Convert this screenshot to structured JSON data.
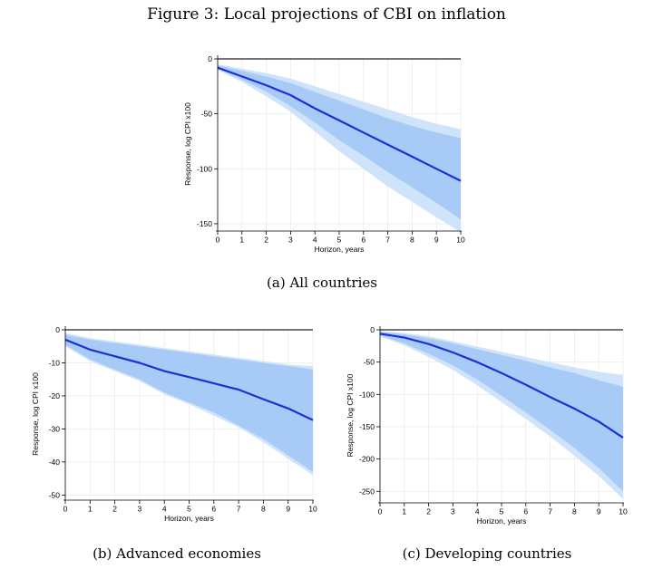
{
  "figure_title": "Figure 3: Local projections of CBI on inflation",
  "colors": {
    "line": "#1f2ed6",
    "band_outer": "#cfe3fb",
    "band_inner": "#a7cbf6",
    "zero_line": "#222222",
    "grid": "#e6e6e6"
  },
  "chart_data": [
    {
      "type": "line",
      "caption": "(a) All countries",
      "xlabel": "Horizon, years",
      "ylabel": "Response, log CPI x100",
      "xlim": [
        0,
        10
      ],
      "ylim": [
        -155,
        0
      ],
      "x_ticks": [
        0,
        1,
        2,
        3,
        4,
        5,
        6,
        7,
        8,
        9,
        10
      ],
      "y_ticks": [
        0,
        -50,
        -100,
        -150
      ],
      "grid": true,
      "x": [
        0,
        1,
        2,
        3,
        4,
        5,
        6,
        7,
        8,
        9,
        10
      ],
      "series": [
        {
          "values": [
            -8,
            -16,
            -24,
            -33,
            -45,
            -56,
            -67,
            -78,
            -89,
            -100,
            -111
          ]
        }
      ],
      "band_outer": {
        "upper": [
          -5,
          -9,
          -13,
          -18,
          -25,
          -32,
          -39,
          -46,
          -53,
          -59,
          -64
        ],
        "lower": [
          -10,
          -21,
          -34,
          -48,
          -66,
          -84,
          -100,
          -116,
          -130,
          -144,
          -158
        ]
      },
      "band_inner": {
        "upper": [
          -6,
          -11,
          -16,
          -22,
          -30,
          -38,
          -46,
          -54,
          -61,
          -67,
          -72
        ],
        "lower": [
          -9,
          -19,
          -30,
          -43,
          -58,
          -74,
          -88,
          -103,
          -117,
          -131,
          -146
        ]
      }
    },
    {
      "type": "line",
      "caption": "(b) Advanced economies",
      "xlabel": "Horizon, years",
      "ylabel": "Response, log CPI x100",
      "xlim": [
        0,
        10
      ],
      "ylim": [
        -51,
        0
      ],
      "x_ticks": [
        0,
        1,
        2,
        3,
        4,
        5,
        6,
        7,
        8,
        9,
        10
      ],
      "y_ticks": [
        0,
        -10,
        -20,
        -30,
        -40,
        -50
      ],
      "grid": true,
      "x": [
        0,
        1,
        2,
        3,
        4,
        5,
        6,
        7,
        8,
        9,
        10
      ],
      "series": [
        {
          "values": [
            -3,
            -6,
            -8,
            -10,
            -12.5,
            -14.3,
            -16.2,
            -18.1,
            -21,
            -23.8,
            -27.3
          ]
        }
      ],
      "band_outer": {
        "upper": [
          -1,
          -2.5,
          -3.5,
          -4.5,
          -5.5,
          -6.5,
          -7.5,
          -8.5,
          -9.5,
          -10.5,
          -11
        ],
        "lower": [
          -5,
          -9.5,
          -12.5,
          -15.5,
          -19.5,
          -22.5,
          -26,
          -29.5,
          -34,
          -39,
          -44
        ]
      },
      "band_inner": {
        "upper": [
          -1.5,
          -3,
          -4,
          -5,
          -6,
          -7,
          -8,
          -9,
          -10,
          -11,
          -12
        ],
        "lower": [
          -4.5,
          -9,
          -12,
          -15,
          -19,
          -22,
          -25,
          -29,
          -33,
          -38,
          -43
        ]
      }
    },
    {
      "type": "line",
      "caption": "(c) Developing countries",
      "xlabel": "Horizon, years",
      "ylabel": "Response, log CPI x100",
      "xlim": [
        0,
        10
      ],
      "ylim": [
        -265,
        0
      ],
      "x_ticks": [
        0,
        1,
        2,
        3,
        4,
        5,
        6,
        7,
        8,
        9,
        10
      ],
      "y_ticks": [
        0,
        -50,
        -100,
        -150,
        -200,
        -250
      ],
      "grid": true,
      "x": [
        0,
        1,
        2,
        3,
        4,
        5,
        6,
        7,
        8,
        9,
        10
      ],
      "series": [
        {
          "values": [
            -6,
            -12,
            -22,
            -35,
            -50,
            -67,
            -85,
            -104,
            -122,
            -142,
            -167
          ]
        }
      ],
      "band_outer": {
        "upper": [
          -2,
          -5,
          -10,
          -18,
          -26,
          -34,
          -42,
          -50,
          -58,
          -65,
          -70
        ],
        "lower": [
          -10,
          -24,
          -42,
          -62,
          -86,
          -112,
          -138,
          -165,
          -195,
          -226,
          -262
        ]
      },
      "band_inner": {
        "upper": [
          -3,
          -7,
          -13,
          -21,
          -30,
          -39,
          -48,
          -58,
          -67,
          -78,
          -88
        ],
        "lower": [
          -9,
          -21,
          -37,
          -55,
          -77,
          -102,
          -128,
          -155,
          -183,
          -214,
          -250
        ]
      }
    }
  ]
}
